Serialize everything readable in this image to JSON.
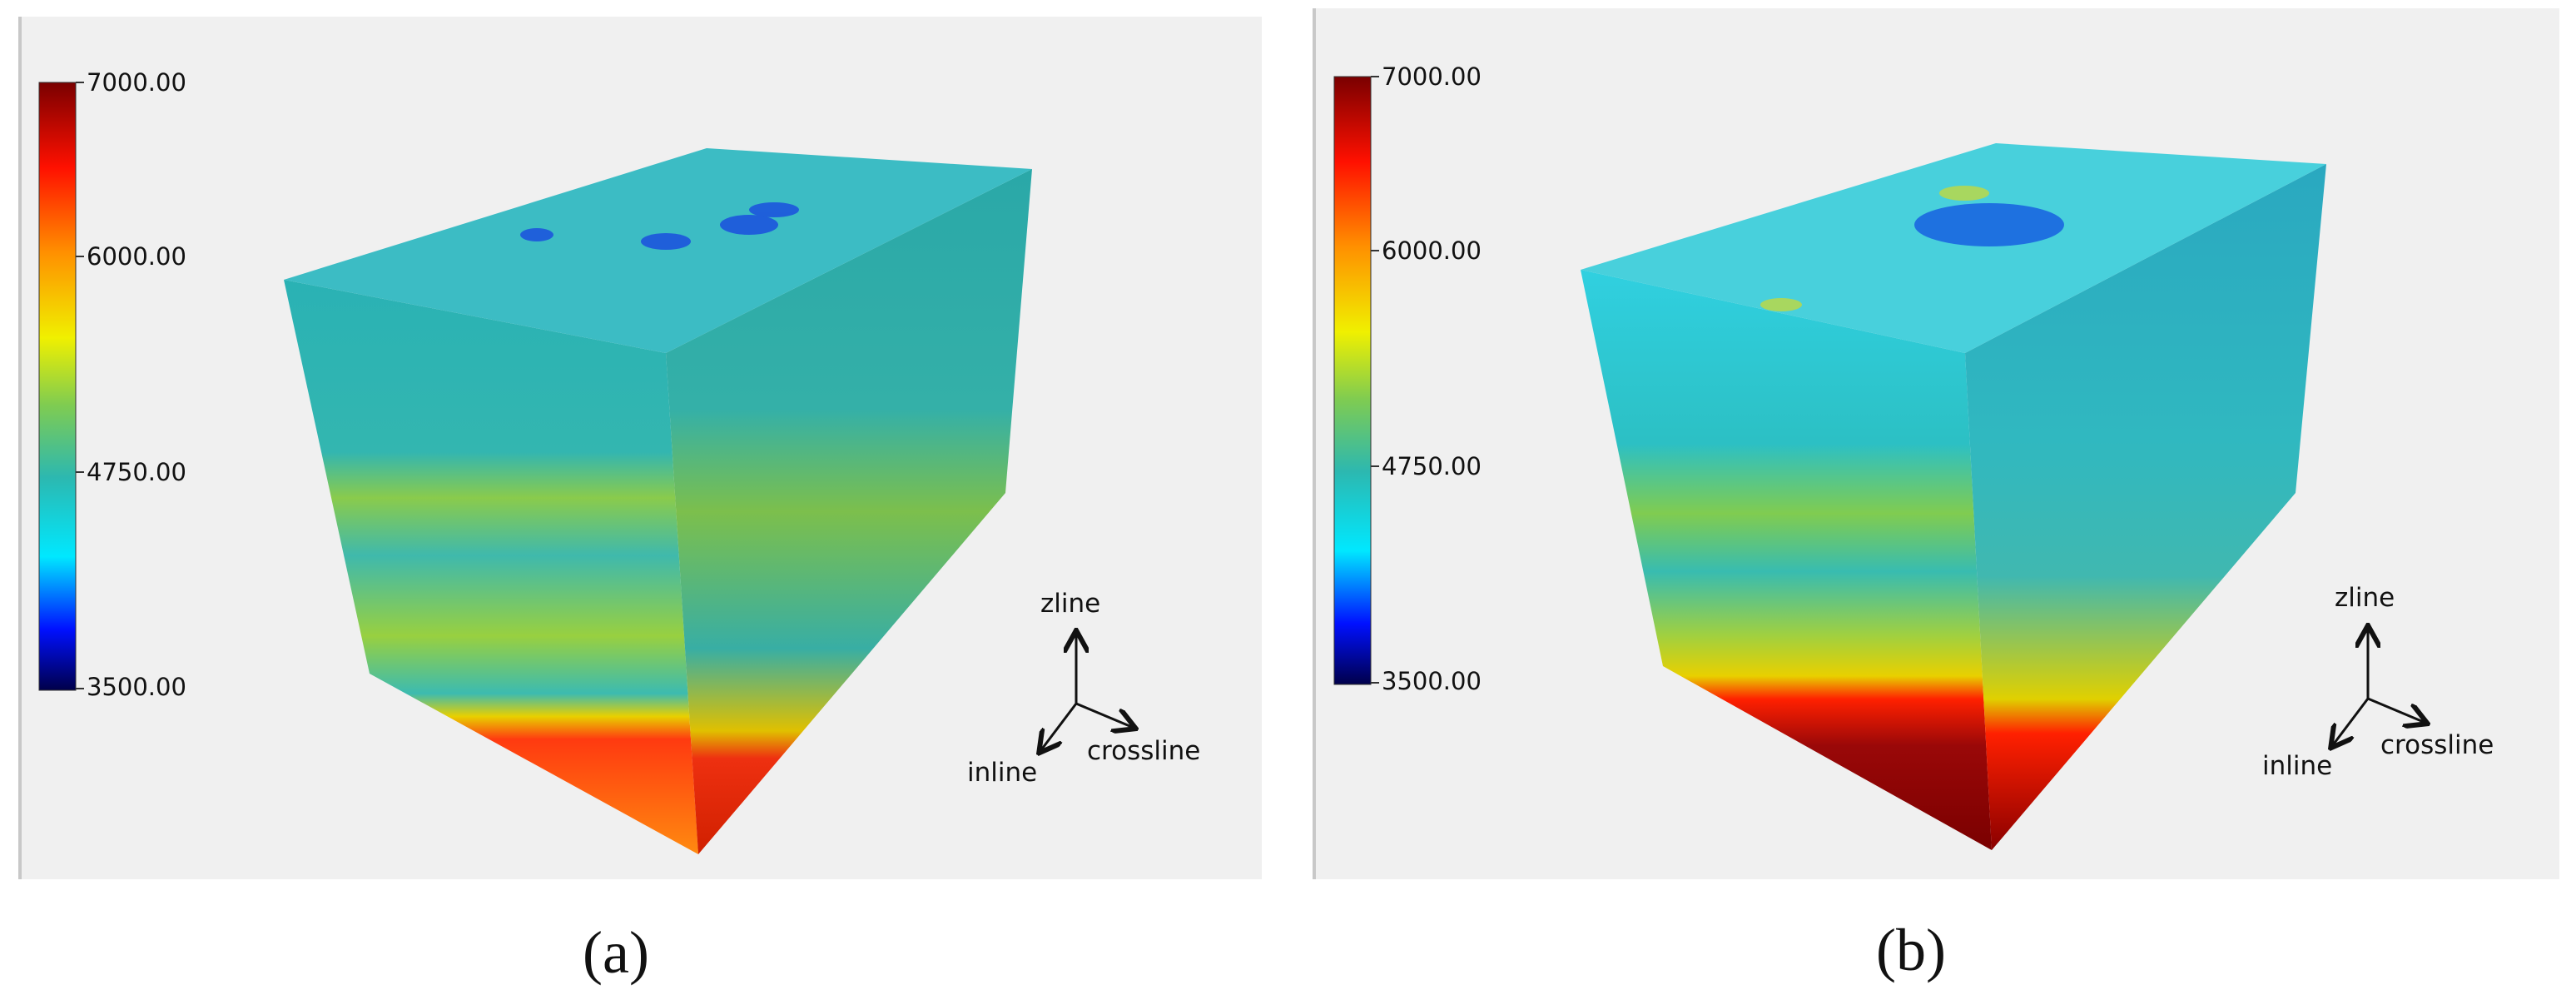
{
  "panels": [
    {
      "caption": "(a)",
      "colorbar": {
        "ticks": [
          "7000.00",
          "6000.00",
          "4750.00",
          "3500.00"
        ]
      },
      "axes": {
        "z": "zline",
        "inline": "inline",
        "crossline": "crossline"
      }
    },
    {
      "caption": "(b)",
      "colorbar": {
        "ticks": [
          "7000.00",
          "6000.00",
          "4750.00",
          "3500.00"
        ]
      },
      "axes": {
        "z": "zline",
        "inline": "inline",
        "crossline": "crossline"
      }
    }
  ]
}
